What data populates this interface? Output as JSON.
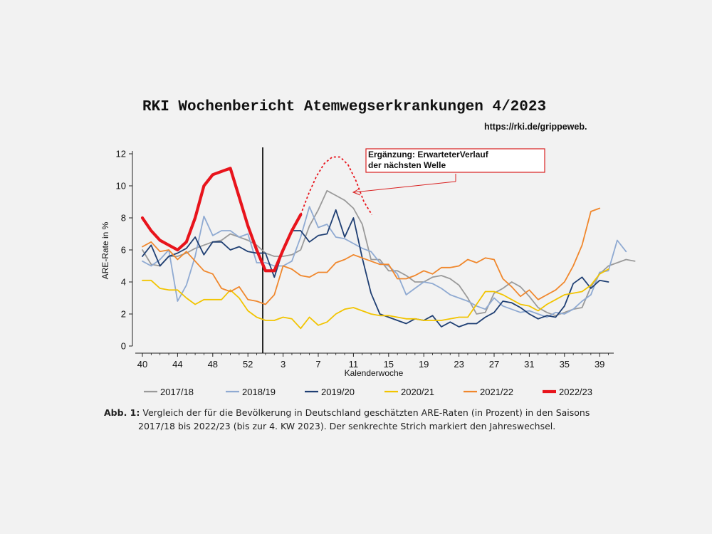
{
  "header": {
    "title": "RKI Wochenbericht Atemwegserkrankungen 4/2023",
    "url": "https://rki.de/grippeweb."
  },
  "caption": {
    "label": "Abb. 1:",
    "line1": "Vergleich der für die Bevölkerung in Deutschland geschätzten ARE-Raten (in Prozent) in den Saisons",
    "line2": "2017/18 bis 2022/23 (bis zur 4. KW 2023). Der senkrechte Strich markiert den Jahreswechsel."
  },
  "chart_data": {
    "type": "line",
    "xlabel": "Kalenderwoche",
    "ylabel": "ARE-Rate in %",
    "x_tick_labels": [
      "40",
      "44",
      "48",
      "52",
      "3",
      "7",
      "11",
      "15",
      "19",
      "23",
      "27",
      "31",
      "35",
      "39"
    ],
    "y_ticks": [
      0,
      2,
      4,
      6,
      8,
      10,
      12
    ],
    "ylim": [
      0,
      12
    ],
    "year_change_marker": "between week 53 and week 1",
    "legend_position": "bottom",
    "annotation": {
      "line1": "Ergänzung:  ErwarteterVerlauf",
      "line2": "der nächsten Welle",
      "projection_values": [
        8.2,
        9.5,
        10.6,
        11.4,
        11.8,
        11.8,
        11.3,
        10.3,
        9.0,
        8.2
      ]
    },
    "series": [
      {
        "name": "2017/18",
        "color": "#9a9a9a",
        "values": [
          6.0,
          5.1,
          5.0,
          5.6,
          5.6,
          5.8,
          6.1,
          6.3,
          6.5,
          6.6,
          7.0,
          6.8,
          6.6,
          6.3,
          5.8,
          5.6,
          5.6,
          5.7,
          6.0,
          7.5,
          8.5,
          9.7,
          9.4,
          9.1,
          8.6,
          7.6,
          5.4,
          5.4,
          4.7,
          4.7,
          4.4,
          4.0,
          4.0,
          4.3,
          4.4,
          4.2,
          3.8,
          3.0,
          2.0,
          2.1,
          3.3,
          3.6,
          4.0,
          3.7,
          3.1,
          2.4,
          2.1,
          1.9,
          2.1,
          2.3,
          2.4,
          3.7,
          4.5,
          5.0,
          5.2,
          5.4,
          5.3
        ]
      },
      {
        "name": "2018/19",
        "color": "#8faad2",
        "values": [
          5.3,
          5.0,
          5.4,
          6.0,
          2.8,
          3.8,
          5.6,
          8.1,
          6.9,
          7.2,
          7.2,
          6.8,
          7.0,
          5.2,
          5.2,
          5.0,
          5.0,
          5.3,
          6.8,
          8.7,
          7.4,
          7.6,
          6.8,
          6.7,
          6.4,
          6.1,
          5.9,
          5.2,
          5.0,
          4.5,
          3.2,
          3.6,
          4.0,
          3.9,
          3.6,
          3.2,
          3.0,
          2.8,
          2.5,
          2.3,
          3.0,
          2.5,
          2.3,
          2.1,
          2.2,
          2.0,
          1.8,
          2.1,
          2.0,
          2.3,
          2.8,
          3.2,
          4.6,
          4.7,
          6.6,
          5.9
        ]
      },
      {
        "name": "2019/20",
        "color": "#1f3f73",
        "values": [
          5.6,
          6.3,
          5.0,
          5.6,
          5.8,
          6.1,
          6.8,
          5.7,
          6.5,
          6.5,
          6.0,
          6.2,
          5.9,
          5.8,
          5.8,
          4.3,
          6.0,
          7.2,
          7.2,
          6.5,
          6.9,
          7.0,
          8.5,
          6.8,
          8.0,
          5.5,
          3.3,
          2.0,
          1.8,
          1.6,
          1.4,
          1.7,
          1.6,
          1.9,
          1.2,
          1.5,
          1.2,
          1.4,
          1.4,
          1.8,
          2.1,
          2.8,
          2.7,
          2.4,
          2.0,
          1.7,
          1.9,
          1.8,
          2.5,
          3.9,
          4.3,
          3.6,
          4.1,
          4.0
        ]
      },
      {
        "name": "2020/21",
        "color": "#f2c400",
        "values": [
          4.1,
          4.1,
          3.6,
          3.5,
          3.5,
          3.0,
          2.6,
          2.9,
          2.9,
          2.9,
          3.5,
          3.0,
          2.2,
          1.8,
          1.6,
          1.6,
          1.8,
          1.7,
          1.1,
          1.8,
          1.3,
          1.5,
          2.0,
          2.3,
          2.4,
          2.2,
          2.0,
          1.9,
          1.9,
          1.8,
          1.7,
          1.7,
          1.6,
          1.6,
          1.6,
          1.7,
          1.8,
          1.8,
          2.6,
          3.4,
          3.4,
          3.2,
          2.9,
          2.6,
          2.5,
          2.2,
          2.6,
          2.9,
          3.2,
          3.3,
          3.4,
          3.8,
          4.5,
          4.8
        ]
      },
      {
        "name": "2021/22",
        "color": "#f0872c",
        "values": [
          6.2,
          6.5,
          5.9,
          6.0,
          5.4,
          5.9,
          5.3,
          4.7,
          4.5,
          3.6,
          3.4,
          3.7,
          2.9,
          2.8,
          2.6,
          3.2,
          5.0,
          4.8,
          4.4,
          4.3,
          4.6,
          4.6,
          5.2,
          5.4,
          5.7,
          5.5,
          5.3,
          5.1,
          5.1,
          4.2,
          4.2,
          4.4,
          4.7,
          4.5,
          4.9,
          4.9,
          5.0,
          5.4,
          5.2,
          5.5,
          5.4,
          4.2,
          3.7,
          3.1,
          3.5,
          2.9,
          3.2,
          3.5,
          4.0,
          5.0,
          6.3,
          8.4,
          8.6
        ]
      },
      {
        "name": "2022/23",
        "color": "#e8141c",
        "values": [
          8.0,
          7.2,
          6.6,
          6.3,
          6.0,
          6.5,
          8.0,
          10.0,
          10.7,
          10.9,
          11.1,
          9.3,
          7.5,
          6.0,
          4.7,
          4.7,
          6.0,
          7.2,
          8.2
        ]
      }
    ]
  }
}
